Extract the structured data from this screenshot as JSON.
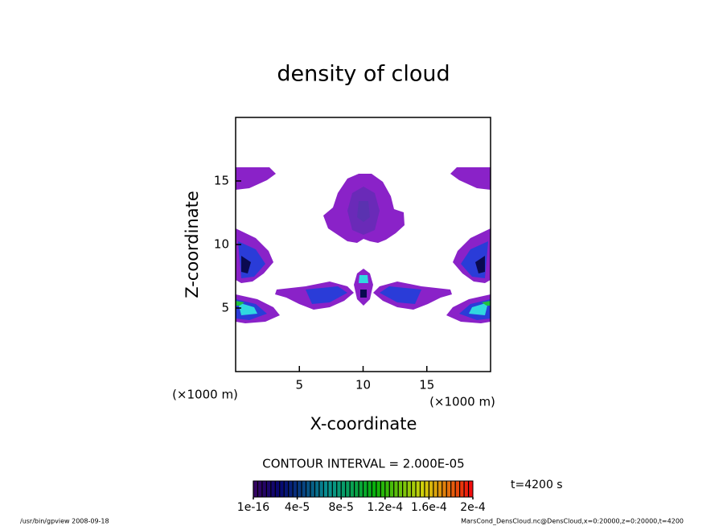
{
  "chart_data": {
    "type": "contour",
    "title": "density of cloud",
    "x_label": "X-coordinate",
    "y_label": "Z-coordinate",
    "x_unit": "(×1000 m)",
    "y_unit": "(×1000 m)",
    "xlim": [
      0,
      20
    ],
    "xticks": [
      5,
      10,
      15
    ],
    "ylim": [
      0,
      20
    ],
    "yticks": [
      5,
      10,
      15
    ],
    "contour_interval": "CONTOUR INTERVAL = 2.000E-05",
    "time_label": "t=4200 s",
    "colorbar_lim": [
      0,
      0.0002
    ],
    "colorbar_ticks": [
      {
        "value": 1e-16,
        "label": "1e-16"
      },
      {
        "value": 4e-05,
        "label": "4e-5"
      },
      {
        "value": 8e-05,
        "label": "8e-5"
      },
      {
        "value": 0.00012,
        "label": "1.2e-4"
      },
      {
        "value": 0.00016,
        "label": "1.6e-4"
      },
      {
        "value": 0.0002,
        "label": "2e-4"
      }
    ],
    "footer_left": "/usr/bin/gpview  2008-09-18",
    "footer_right": "MarsCond_DensCloud.nc@DensCloud,x=0:20000,z=0:20000,t=4200"
  }
}
